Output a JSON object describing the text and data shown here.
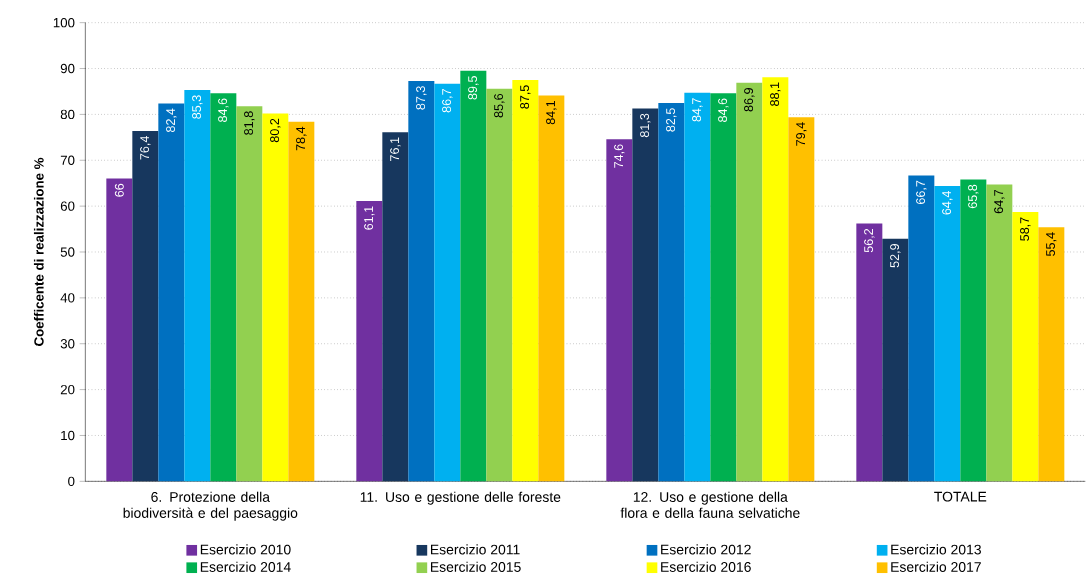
{
  "chart_data": {
    "type": "bar",
    "ylabel": "Coefficente di realizzazione %",
    "categories": [
      "6. Protezione della biodiversità e del paesaggio",
      "11. Uso e gestione delle foreste",
      "12. Uso e gestione della flora e della fauna selvatiche",
      "TOTALE"
    ],
    "series": [
      {
        "name": "Esercizio 2010",
        "color": "#7030a0",
        "values": [
          66,
          61.1,
          74.6,
          56.2
        ],
        "value_labels": [
          "66",
          "61,1",
          "74,6",
          "56,2"
        ]
      },
      {
        "name": "Esercizio 2011",
        "color": "#17375e",
        "values": [
          76.4,
          76.1,
          81.3,
          52.9
        ],
        "value_labels": [
          "76,4",
          "76,1",
          "81,3",
          "52,9"
        ]
      },
      {
        "name": "Esercizio 2012",
        "color": "#0070c0",
        "values": [
          82.4,
          87.3,
          82.5,
          66.7
        ],
        "value_labels": [
          "82,4",
          "87,3",
          "82,5",
          "66,7"
        ]
      },
      {
        "name": "Esercizio 2013",
        "color": "#00b0f0",
        "values": [
          85.3,
          86.7,
          84.7,
          64.4
        ],
        "value_labels": [
          "85,3",
          "86,7",
          "84,7",
          "64,4"
        ]
      },
      {
        "name": "Esercizio 2014",
        "color": "#00b050",
        "values": [
          84.6,
          89.5,
          84.6,
          65.8
        ],
        "value_labels": [
          "84,6",
          "89,5",
          "84,6",
          "65,8"
        ]
      },
      {
        "name": "Esercizio 2015",
        "color": "#92d050",
        "values": [
          81.8,
          85.6,
          86.9,
          64.7
        ],
        "value_labels": [
          "81,8",
          "85,6",
          "86,9",
          "64,7"
        ]
      },
      {
        "name": "Esercizio 2016",
        "color": "#ffff00",
        "values": [
          80.2,
          87.5,
          88.1,
          58.7
        ],
        "value_labels": [
          "80,2",
          "87,5",
          "88,1",
          "58,7"
        ]
      },
      {
        "name": "Esercizio 2017",
        "color": "#ffc000",
        "values": [
          78.4,
          84.1,
          79.4,
          55.4
        ],
        "value_labels": [
          "78,4",
          "84,1",
          "79,4",
          "55,4"
        ]
      }
    ],
    "ylim": [
      0,
      100
    ],
    "yticks": [
      0,
      10,
      20,
      30,
      40,
      50,
      60,
      70,
      80,
      90,
      100
    ],
    "grid": "y",
    "legend": "bottom"
  }
}
